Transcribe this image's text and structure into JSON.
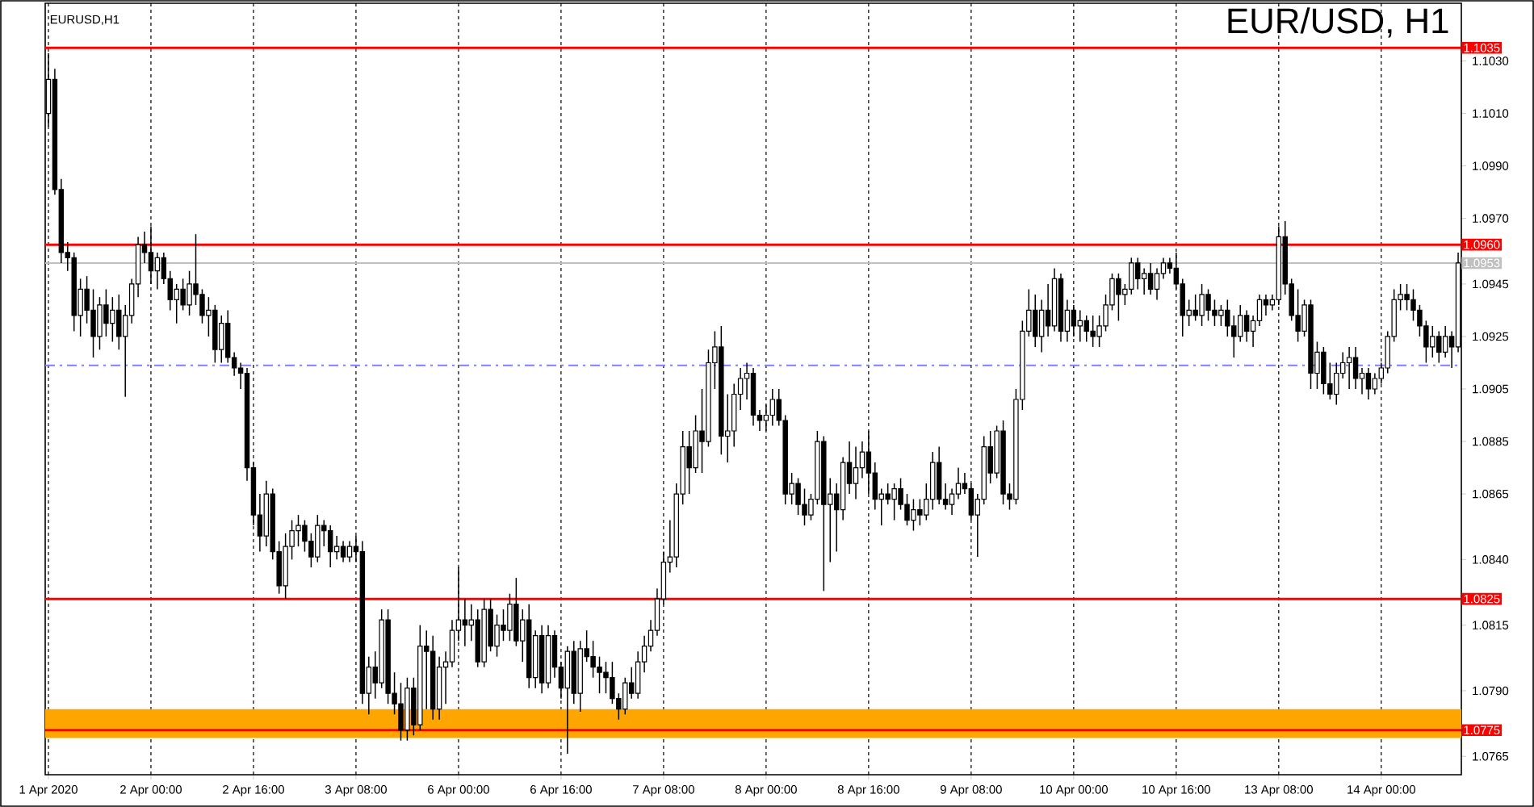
{
  "chart_data": {
    "type": "candlestick",
    "title": "EUR/USD, H1",
    "subtitle": "EURUSD,H1",
    "categories": [
      "1 Apr 2020",
      null,
      null,
      null,
      null,
      null,
      null,
      null,
      null,
      null,
      null,
      null,
      null,
      null,
      null,
      null,
      "2 Apr 00:00",
      null,
      null,
      null,
      null,
      null,
      null,
      null,
      null,
      null,
      null,
      null,
      null,
      null,
      null,
      null,
      "2 Apr 16:00",
      null,
      null,
      null,
      null,
      null,
      null,
      null,
      null,
      null,
      null,
      null,
      null,
      null,
      null,
      null,
      "3 Apr 08:00",
      null,
      null,
      null,
      null,
      null,
      null,
      null,
      null,
      null,
      null,
      null,
      null,
      null,
      null,
      null,
      "6 Apr 00:00",
      null,
      null,
      null,
      null,
      null,
      null,
      null,
      null,
      null,
      null,
      null,
      null,
      null,
      null,
      null,
      "6 Apr 16:00",
      null,
      null,
      null,
      null,
      null,
      null,
      null,
      null,
      null,
      null,
      null,
      null,
      null,
      null,
      null,
      "7 Apr 08:00",
      null,
      null,
      null,
      null,
      null,
      null,
      null,
      null,
      null,
      null,
      null,
      null,
      null,
      null,
      null,
      "8 Apr 00:00",
      null,
      null,
      null,
      null,
      null,
      null,
      null,
      null,
      null,
      null,
      null,
      null,
      null,
      null,
      null,
      "8 Apr 16:00",
      null,
      null,
      null,
      null,
      null,
      null,
      null,
      null,
      null,
      null,
      null,
      null,
      null,
      null,
      null,
      "9 Apr 08:00",
      null,
      null,
      null,
      null,
      null,
      null,
      null,
      null,
      null,
      null,
      null,
      null,
      null,
      null,
      null,
      "10 Apr 00:00",
      null,
      null,
      null,
      null,
      null,
      null,
      null,
      null,
      null,
      null,
      null,
      null,
      null,
      null,
      null,
      "10 Apr 16:00",
      null,
      null,
      null,
      null,
      null,
      null,
      null,
      null,
      null,
      null,
      null,
      null,
      null,
      null,
      null,
      "13 Apr 08:00",
      null,
      null,
      null,
      null,
      null,
      null,
      null,
      null,
      null,
      null,
      null,
      null,
      null,
      null,
      null,
      "14 Apr 00:00",
      null,
      null,
      null,
      null,
      null,
      null,
      null,
      null,
      null,
      null,
      null,
      null
    ],
    "ohlc": [
      [
        1.101,
        1.1033,
        1.1005,
        1.1023
      ],
      [
        1.1023,
        1.1027,
        1.0979,
        1.0981
      ],
      [
        1.0981,
        1.0985,
        1.0953,
        1.0957
      ],
      [
        1.0957,
        1.0961,
        1.095,
        1.0955
      ],
      [
        1.0955,
        1.0957,
        1.0927,
        1.0933
      ],
      [
        1.0933,
        1.0947,
        1.0925,
        1.0943
      ],
      [
        1.0943,
        1.0948,
        1.093,
        1.0935
      ],
      [
        1.0935,
        1.0943,
        1.0917,
        1.0925
      ],
      [
        1.0925,
        1.094,
        1.092,
        1.0937
      ],
      [
        1.0937,
        1.0943,
        1.0925,
        1.093
      ],
      [
        1.093,
        1.094,
        1.0923,
        1.0935
      ],
      [
        1.0935,
        1.0941,
        1.092,
        1.0925
      ],
      [
        1.0925,
        1.0937,
        1.0902,
        1.0933
      ],
      [
        1.0933,
        1.0947,
        1.093,
        1.0945
      ],
      [
        1.0945,
        1.0963,
        1.094,
        1.096
      ],
      [
        1.096,
        1.0965,
        1.0953,
        1.0957
      ],
      [
        1.0957,
        1.0967,
        1.0945,
        1.095
      ],
      [
        1.095,
        1.0957,
        1.0943,
        1.0955
      ],
      [
        1.0955,
        1.0957,
        1.0945,
        1.0947
      ],
      [
        1.0947,
        1.095,
        1.0935,
        1.0939
      ],
      [
        1.0939,
        1.0945,
        1.093,
        1.0943
      ],
      [
        1.0943,
        1.0947,
        1.0935,
        1.0937
      ],
      [
        1.0937,
        1.095,
        1.0933,
        1.0945
      ],
      [
        1.0945,
        1.0964,
        1.0937,
        1.0941
      ],
      [
        1.0941,
        1.0943,
        1.093,
        1.0933
      ],
      [
        1.0933,
        1.094,
        1.0925,
        1.0935
      ],
      [
        1.0935,
        1.0937,
        1.0915,
        1.092
      ],
      [
        1.092,
        1.0933,
        1.0915,
        1.093
      ],
      [
        1.093,
        1.0935,
        1.0915,
        1.0917
      ],
      [
        1.0917,
        1.0919,
        1.091,
        1.0913
      ],
      [
        1.0913,
        1.0915,
        1.0905,
        1.0911
      ],
      [
        1.0911,
        1.0913,
        1.087,
        1.0875
      ],
      [
        1.0875,
        1.0877,
        1.0853,
        1.0857
      ],
      [
        1.0857,
        1.0865,
        1.0843,
        1.0849
      ],
      [
        1.0849,
        1.087,
        1.0845,
        1.0865
      ],
      [
        1.0865,
        1.0867,
        1.084,
        1.0843
      ],
      [
        1.0843,
        1.0847,
        1.0827,
        1.083
      ],
      [
        1.083,
        1.085,
        1.0825,
        1.0845
      ],
      [
        1.0845,
        1.0855,
        1.084,
        1.0851
      ],
      [
        1.0851,
        1.0857,
        1.0845,
        1.0853
      ],
      [
        1.0853,
        1.0855,
        1.0843,
        1.0847
      ],
      [
        1.0847,
        1.085,
        1.0837,
        1.0841
      ],
      [
        1.0841,
        1.0857,
        1.0839,
        1.0853
      ],
      [
        1.0853,
        1.0855,
        1.0845,
        1.0851
      ],
      [
        1.0851,
        1.0853,
        1.0837,
        1.0843
      ],
      [
        1.0843,
        1.0849,
        1.084,
        1.0845
      ],
      [
        1.0845,
        1.0847,
        1.0839,
        1.0841
      ],
      [
        1.0841,
        1.0847,
        1.0839,
        1.0845
      ],
      [
        1.0845,
        1.0849,
        1.0839,
        1.0843
      ],
      [
        1.0843,
        1.0847,
        1.0785,
        1.0789
      ],
      [
        1.0789,
        1.0803,
        1.0781,
        1.0799
      ],
      [
        1.0799,
        1.0805,
        1.0787,
        1.0793
      ],
      [
        1.0793,
        1.0821,
        1.0791,
        1.0817
      ],
      [
        1.0817,
        1.0821,
        1.0785,
        1.0789
      ],
      [
        1.0789,
        1.0797,
        1.0781,
        1.0785
      ],
      [
        1.0785,
        1.0793,
        1.0771,
        1.0775
      ],
      [
        1.0775,
        1.0795,
        1.0771,
        1.0791
      ],
      [
        1.0791,
        1.0795,
        1.0773,
        1.0777
      ],
      [
        1.0777,
        1.0815,
        1.0775,
        1.0807
      ],
      [
        1.0807,
        1.0813,
        1.0783,
        1.0805
      ],
      [
        1.0805,
        1.0811,
        1.0779,
        1.0783
      ],
      [
        1.0783,
        1.0803,
        1.0779,
        1.0799
      ],
      [
        1.0799,
        1.0805,
        1.0785,
        1.0801
      ],
      [
        1.0801,
        1.0817,
        1.0799,
        1.0813
      ],
      [
        1.0813,
        1.0837,
        1.0809,
        1.0817
      ],
      [
        1.0817,
        1.0825,
        1.0807,
        1.0815
      ],
      [
        1.0815,
        1.0823,
        1.0809,
        1.0817
      ],
      [
        1.0817,
        1.0821,
        1.0799,
        1.0801
      ],
      [
        1.0801,
        1.0825,
        1.0799,
        1.0821
      ],
      [
        1.0821,
        1.0825,
        1.0805,
        1.0807
      ],
      [
        1.0807,
        1.0819,
        1.0803,
        1.0815
      ],
      [
        1.0815,
        1.0821,
        1.0809,
        1.0813
      ],
      [
        1.0813,
        1.0827,
        1.0809,
        1.0823
      ],
      [
        1.0823,
        1.0833,
        1.0807,
        1.0809
      ],
      [
        1.0809,
        1.0821,
        1.0801,
        1.0817
      ],
      [
        1.0817,
        1.0823,
        1.0791,
        1.0795
      ],
      [
        1.0795,
        1.0813,
        1.0791,
        1.0811
      ],
      [
        1.0811,
        1.0815,
        1.0789,
        1.0793
      ],
      [
        1.0793,
        1.0815,
        1.0791,
        1.0811
      ],
      [
        1.0811,
        1.0813,
        1.0795,
        1.0799
      ],
      [
        1.0799,
        1.0801,
        1.0787,
        1.0791
      ],
      [
        1.0791,
        1.0807,
        1.0766,
        1.0805
      ],
      [
        1.0805,
        1.0809,
        1.0785,
        1.0789
      ],
      [
        1.0789,
        1.0809,
        1.0782,
        1.0806
      ],
      [
        1.0806,
        1.0813,
        1.0801,
        1.0803
      ],
      [
        1.0803,
        1.0809,
        1.0795,
        1.0799
      ],
      [
        1.0799,
        1.0803,
        1.0789,
        1.0797
      ],
      [
        1.0797,
        1.0801,
        1.0789,
        1.0795
      ],
      [
        1.0795,
        1.0801,
        1.0785,
        1.0787
      ],
      [
        1.0787,
        1.0789,
        1.0779,
        1.0783
      ],
      [
        1.0783,
        1.0795,
        1.0781,
        1.0793
      ],
      [
        1.0793,
        1.0799,
        1.0787,
        1.0789
      ],
      [
        1.0789,
        1.0805,
        1.0787,
        1.0801
      ],
      [
        1.0801,
        1.0811,
        1.0797,
        1.0807
      ],
      [
        1.0807,
        1.0817,
        1.0805,
        1.0813
      ],
      [
        1.0813,
        1.0829,
        1.0811,
        1.0825
      ],
      [
        1.0825,
        1.0843,
        1.0823,
        1.0839
      ],
      [
        1.0839,
        1.0855,
        1.0835,
        1.0841
      ],
      [
        1.0841,
        1.0869,
        1.0837,
        1.0865
      ],
      [
        1.0865,
        1.0889,
        1.0861,
        1.0883
      ],
      [
        1.0883,
        1.0889,
        1.0865,
        1.0875
      ],
      [
        1.0875,
        1.0895,
        1.0873,
        1.0889
      ],
      [
        1.0889,
        1.0905,
        1.0873,
        1.0885
      ],
      [
        1.0885,
        1.092,
        1.0883,
        1.0915
      ],
      [
        1.0915,
        1.0927,
        1.0905,
        1.0921
      ],
      [
        1.0921,
        1.0929,
        1.088,
        1.0887
      ],
      [
        1.0887,
        1.0903,
        1.0877,
        1.0889
      ],
      [
        1.0889,
        1.0907,
        1.0883,
        1.0903
      ],
      [
        1.0903,
        1.0913,
        1.0897,
        1.0909
      ],
      [
        1.0909,
        1.0915,
        1.0901,
        1.0911
      ],
      [
        1.0911,
        1.0913,
        1.0891,
        1.0895
      ],
      [
        1.0895,
        1.0897,
        1.0889,
        1.0893
      ],
      [
        1.0893,
        1.0899,
        1.0889,
        1.0895
      ],
      [
        1.0895,
        1.0905,
        1.0891,
        1.0901
      ],
      [
        1.0901,
        1.0905,
        1.0891,
        1.0893
      ],
      [
        1.0893,
        1.0895,
        1.0861,
        1.0865
      ],
      [
        1.0865,
        1.0873,
        1.0861,
        1.0869
      ],
      [
        1.0869,
        1.0871,
        1.0857,
        1.0861
      ],
      [
        1.0861,
        1.0867,
        1.0853,
        1.0857
      ],
      [
        1.0857,
        1.0865,
        1.0855,
        1.0863
      ],
      [
        1.0863,
        1.0889,
        1.0861,
        1.0885
      ],
      [
        1.0885,
        1.0887,
        1.0828,
        1.0861
      ],
      [
        1.0861,
        1.0871,
        1.0839,
        1.0865
      ],
      [
        1.0865,
        1.0869,
        1.0843,
        1.0859
      ],
      [
        1.0859,
        1.0879,
        1.0855,
        1.0877
      ],
      [
        1.0877,
        1.0885,
        1.0865,
        1.0869
      ],
      [
        1.0869,
        1.0883,
        1.0863,
        1.0875
      ],
      [
        1.0875,
        1.0885,
        1.0871,
        1.0881
      ],
      [
        1.0881,
        1.0889,
        1.0865,
        1.0873
      ],
      [
        1.0873,
        1.0877,
        1.0859,
        1.0863
      ],
      [
        1.0863,
        1.0867,
        1.0853,
        1.0865
      ],
      [
        1.0865,
        1.0869,
        1.0861,
        1.0863
      ],
      [
        1.0863,
        1.0869,
        1.0855,
        1.0867
      ],
      [
        1.0867,
        1.0871,
        1.0859,
        1.0861
      ],
      [
        1.0861,
        1.0865,
        1.0853,
        1.0855
      ],
      [
        1.0855,
        1.0863,
        1.0851,
        1.0859
      ],
      [
        1.0859,
        1.0863,
        1.0853,
        1.0857
      ],
      [
        1.0857,
        1.0869,
        1.0855,
        1.0863
      ],
      [
        1.0863,
        1.0881,
        1.0859,
        1.0877
      ],
      [
        1.0877,
        1.0883,
        1.0861,
        1.0863
      ],
      [
        1.0863,
        1.0869,
        1.0859,
        1.0861
      ],
      [
        1.0861,
        1.0867,
        1.0857,
        1.0865
      ],
      [
        1.0865,
        1.0875,
        1.0863,
        1.0869
      ],
      [
        1.0869,
        1.0873,
        1.0865,
        1.0867
      ],
      [
        1.0867,
        1.0869,
        1.0855,
        1.0857
      ],
      [
        1.0857,
        1.0865,
        1.0841,
        1.0863
      ],
      [
        1.0863,
        1.0887,
        1.0861,
        1.0883
      ],
      [
        1.0883,
        1.0889,
        1.0869,
        1.0873
      ],
      [
        1.0873,
        1.0891,
        1.0871,
        1.0889
      ],
      [
        1.0889,
        1.0893,
        1.0861,
        1.0865
      ],
      [
        1.0865,
        1.0869,
        1.0859,
        1.0863
      ],
      [
        1.0863,
        1.0905,
        1.0861,
        1.0901
      ],
      [
        1.0901,
        1.0931,
        1.0897,
        1.0927
      ],
      [
        1.0927,
        1.0943,
        1.0925,
        1.0935
      ],
      [
        1.0935,
        1.0941,
        1.0921,
        1.0925
      ],
      [
        1.0925,
        1.0939,
        1.0919,
        1.0935
      ],
      [
        1.0935,
        1.0945,
        1.0925,
        1.0929
      ],
      [
        1.0929,
        1.0951,
        1.0927,
        1.0947
      ],
      [
        1.0947,
        1.0949,
        1.0923,
        1.0927
      ],
      [
        1.0927,
        1.0939,
        1.0923,
        1.0935
      ],
      [
        1.0935,
        1.0937,
        1.0925,
        1.0929
      ],
      [
        1.0929,
        1.0935,
        1.0923,
        1.0931
      ],
      [
        1.0931,
        1.0933,
        1.0923,
        1.0927
      ],
      [
        1.0927,
        1.0933,
        1.0921,
        1.0925
      ],
      [
        1.0925,
        1.0933,
        1.0921,
        1.0929
      ],
      [
        1.0929,
        1.0941,
        1.0927,
        1.0937
      ],
      [
        1.0937,
        1.0949,
        1.0935,
        1.0947
      ],
      [
        1.0947,
        1.0949,
        1.0931,
        1.0941
      ],
      [
        1.0941,
        1.0945,
        1.0937,
        1.0943
      ],
      [
        1.0943,
        1.0955,
        1.0941,
        1.0953
      ],
      [
        1.0953,
        1.0955,
        1.0943,
        1.0947
      ],
      [
        1.0947,
        1.0951,
        1.0941,
        1.0949
      ],
      [
        1.0949,
        1.0953,
        1.0941,
        1.0943
      ],
      [
        1.0943,
        1.0951,
        1.0939,
        1.0949
      ],
      [
        1.0949,
        1.0955,
        1.0947,
        1.0953
      ],
      [
        1.0953,
        1.0955,
        1.0949,
        1.0951
      ],
      [
        1.0951,
        1.0957,
        1.0943,
        1.0945
      ],
      [
        1.0945,
        1.0947,
        1.0925,
        1.0933
      ],
      [
        1.0933,
        1.0939,
        1.0929,
        1.0935
      ],
      [
        1.0935,
        1.0941,
        1.0931,
        1.0933
      ],
      [
        1.0933,
        1.0945,
        1.0929,
        1.0941
      ],
      [
        1.0941,
        1.0943,
        1.0931,
        1.0935
      ],
      [
        1.0935,
        1.0939,
        1.0929,
        1.0933
      ],
      [
        1.0933,
        1.0937,
        1.0929,
        1.0935
      ],
      [
        1.0935,
        1.0939,
        1.0925,
        1.0929
      ],
      [
        1.0929,
        1.0933,
        1.0917,
        1.0925
      ],
      [
        1.0925,
        1.0937,
        1.0923,
        1.0933
      ],
      [
        1.0933,
        1.0935,
        1.0923,
        1.0927
      ],
      [
        1.0927,
        1.0933,
        1.0921,
        1.0931
      ],
      [
        1.0931,
        1.0941,
        1.0929,
        1.0939
      ],
      [
        1.0939,
        1.0941,
        1.0933,
        1.0937
      ],
      [
        1.0937,
        1.0941,
        1.0935,
        1.0939
      ],
      [
        1.0939,
        1.0967,
        1.0937,
        1.0963
      ],
      [
        1.0963,
        1.0969,
        1.0941,
        1.0945
      ],
      [
        1.0945,
        1.0947,
        1.0931,
        1.0933
      ],
      [
        1.0933,
        1.0943,
        1.0923,
        1.0927
      ],
      [
        1.0927,
        1.0939,
        1.0925,
        1.0937
      ],
      [
        1.0937,
        1.0939,
        1.0905,
        1.0911
      ],
      [
        1.0911,
        1.0923,
        1.0905,
        1.0919
      ],
      [
        1.0919,
        1.0921,
        1.0903,
        1.0907
      ],
      [
        1.0907,
        1.0915,
        1.0901,
        1.0903
      ],
      [
        1.0903,
        1.0915,
        1.0899,
        1.0911
      ],
      [
        1.0911,
        1.0919,
        1.0909,
        1.0915
      ],
      [
        1.0915,
        1.0921,
        1.0905,
        1.0917
      ],
      [
        1.0917,
        1.0921,
        1.0905,
        1.0909
      ],
      [
        1.0909,
        1.0913,
        1.0903,
        1.0911
      ],
      [
        1.0911,
        1.0913,
        1.0901,
        1.0905
      ],
      [
        1.0905,
        1.0911,
        1.0903,
        1.0909
      ],
      [
        1.0909,
        1.0915,
        1.0907,
        1.0913
      ],
      [
        1.0913,
        1.0927,
        1.0911,
        1.0925
      ],
      [
        1.0925,
        1.0943,
        1.0923,
        1.0939
      ],
      [
        1.0939,
        1.0945,
        1.0935,
        1.0941
      ],
      [
        1.0941,
        1.0945,
        1.0935,
        1.0939
      ],
      [
        1.0939,
        1.0943,
        1.0931,
        1.0935
      ],
      [
        1.0935,
        1.0937,
        1.0925,
        1.0929
      ],
      [
        1.0929,
        1.0931,
        1.0915,
        1.0921
      ],
      [
        1.0921,
        1.0929,
        1.0917,
        1.0925
      ],
      [
        1.0925,
        1.0927,
        1.0915,
        1.0919
      ],
      [
        1.0919,
        1.0929,
        1.0917,
        1.0925
      ],
      [
        1.0925,
        1.0927,
        1.0913,
        1.0921
      ],
      [
        1.0921,
        1.0957,
        1.0919,
        1.0953
      ]
    ],
    "ylim": [
      1.0758,
      1.1052
    ],
    "yticks": [
      1.0765,
      {
        "value": 1.079,
        "label": "1.0790"
      },
      1.0815,
      {
        "value": 1.084,
        "label": "1.0840"
      },
      1.0865,
      1.0885,
      1.0905,
      1.0925,
      1.0945,
      {
        "value": 1.097,
        "label": "1.0970"
      },
      {
        "value": 1.099,
        "label": "1.0990"
      },
      {
        "value": 1.101,
        "label": "1.1010"
      },
      {
        "value": 1.103,
        "label": "1.1030"
      }
    ],
    "grid": "x",
    "ref_lines": [
      {
        "axis": "y",
        "value": 1.1035,
        "label": "1.1035",
        "color": "#ff0000"
      },
      {
        "axis": "y",
        "value": 1.096,
        "label": "1.0960",
        "color": "#ff0000"
      },
      {
        "axis": "y",
        "value": 1.0953,
        "label": "1.0953",
        "color": "#c0c0c0"
      },
      {
        "axis": "y",
        "value": 1.0914,
        "color": "#7f7fff",
        "line_style": "dashed"
      },
      {
        "axis": "y",
        "value": 1.0825,
        "label": "1.0825",
        "color": "#ff0000"
      },
      {
        "axis": "y",
        "value": 1.0775,
        "label": "1.0775",
        "color": "#ff0000"
      }
    ],
    "bands": [
      {
        "axis": "y",
        "from": 1.0772,
        "to": 1.0783,
        "color": "#ffa500"
      }
    ]
  }
}
